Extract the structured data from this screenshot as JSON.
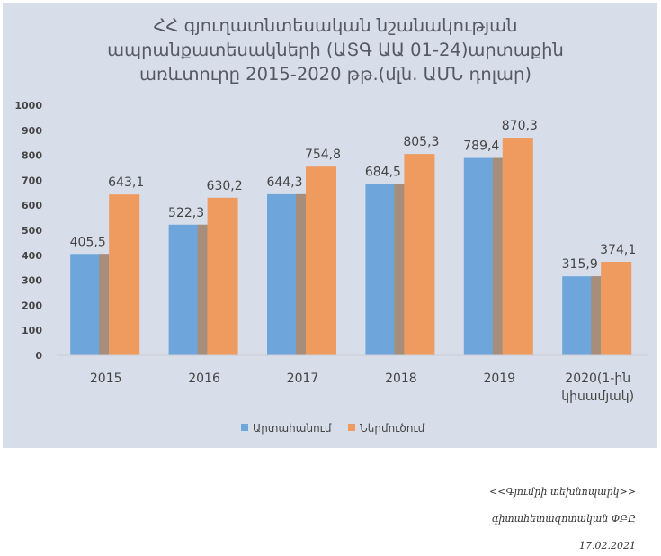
{
  "chart_data": {
    "type": "bar",
    "title_lines": [
      "ՀՀ գյուղատնտեսական նշանակության",
      "ապրանքատեսակների (ԱՏԳ ԱԱ 01-24)արտաքին",
      "առևտուրը 2015-2020 թթ.(մլն. ԱՄՆ դոլար)"
    ],
    "categories": [
      "2015",
      "2016",
      "2017",
      "2018",
      "2019",
      "2020(1-ին կիսամյակ)"
    ],
    "category_lines": [
      [
        "2015"
      ],
      [
        "2016"
      ],
      [
        "2017"
      ],
      [
        "2018"
      ],
      [
        "2019"
      ],
      [
        "2020(1-ին",
        "կիսամյակ)"
      ]
    ],
    "series": [
      {
        "name": "Արտահանում",
        "values": [
          405.5,
          522.3,
          644.3,
          684.5,
          789.4,
          315.9
        ],
        "labels": [
          "405,5",
          "522,3",
          "644,3",
          "684,5",
          "789,4",
          "315,9"
        ],
        "color": "#6ea6dc"
      },
      {
        "name": "Ներմուծում",
        "values": [
          643.1,
          630.2,
          754.8,
          805.3,
          870.3,
          374.1
        ],
        "labels": [
          "643,1",
          "630,2",
          "754,8",
          "805,3",
          "870,3",
          "374,1"
        ],
        "color": "#ef9a5f"
      }
    ],
    "yticks": [
      "0",
      "100",
      "200",
      "300",
      "400",
      "500",
      "600",
      "700",
      "800",
      "900",
      "1000"
    ],
    "ylim": [
      0,
      1000
    ],
    "legend_position": "bottom",
    "grid": false
  },
  "footer": {
    "line1": "<<Գյումրի տեխնոպարկ>>",
    "line2": "գիտահետազոտական ՓԲԸ",
    "line3": "17.02.2021"
  }
}
